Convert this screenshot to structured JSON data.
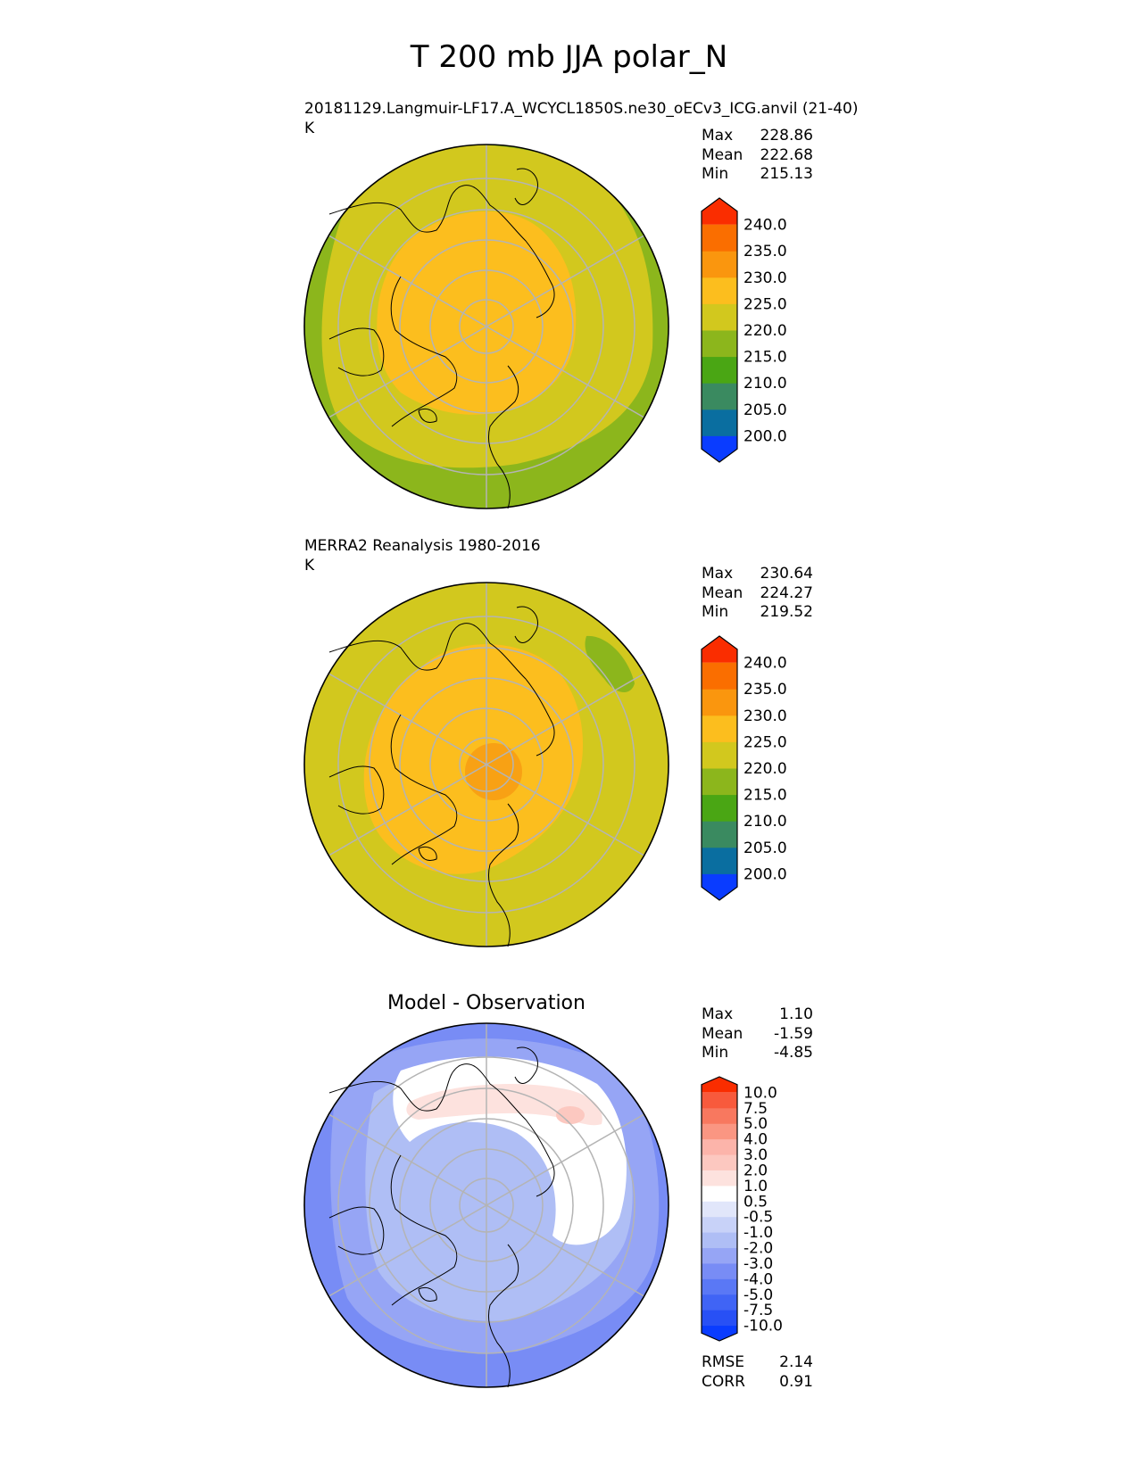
{
  "title": "T 200 mb JJA polar_N",
  "panels": [
    {
      "id": "test",
      "title": "20181129.Langmuir-LF17.A_WCYCL1850S.ne30_oECv3_ICG.anvil (21-40)",
      "units": "K",
      "stats": [
        {
          "label": "Max",
          "value": "228.86"
        },
        {
          "label": "Mean",
          "value": "222.68"
        },
        {
          "label": "Min",
          "value": "215.13"
        }
      ]
    },
    {
      "id": "ref",
      "title": "MERRA2 Reanalysis 1980-2016",
      "units": "K",
      "stats": [
        {
          "label": "Max",
          "value": "230.64"
        },
        {
          "label": "Mean",
          "value": "224.27"
        },
        {
          "label": "Min",
          "value": "219.52"
        }
      ]
    },
    {
      "id": "diff",
      "title": "Model - Observation",
      "units": "",
      "stats": [
        {
          "label": "Max",
          "value": "1.10"
        },
        {
          "label": "Mean",
          "value": "-1.59"
        },
        {
          "label": "Min",
          "value": "-4.85"
        }
      ],
      "metrics": [
        {
          "label": "RMSE",
          "value": "2.14"
        },
        {
          "label": "CORR",
          "value": "0.91"
        }
      ]
    }
  ],
  "chart_data": [
    {
      "type": "heatmap",
      "projection": "north-polar-stereographic",
      "colorbar": {
        "levels": [
          "200.0",
          "205.0",
          "210.0",
          "215.0",
          "220.0",
          "225.0",
          "230.0",
          "235.0",
          "240.0"
        ],
        "colors": [
          "#0a3cff",
          "#0a6ea0",
          "#3a8a60",
          "#4aa614",
          "#8cb61c",
          "#d2c81e",
          "#fcbe1e",
          "#fa960e",
          "#fa6e00",
          "#fa2d00"
        ],
        "extend": "both"
      }
    },
    {
      "type": "heatmap",
      "projection": "north-polar-stereographic",
      "colorbar": {
        "levels": [
          "200.0",
          "205.0",
          "210.0",
          "215.0",
          "220.0",
          "225.0",
          "230.0",
          "235.0",
          "240.0"
        ],
        "colors": [
          "#0a3cff",
          "#0a6ea0",
          "#3a8a60",
          "#4aa614",
          "#8cb61c",
          "#d2c81e",
          "#fcbe1e",
          "#fa960e",
          "#fa6e00",
          "#fa2d00"
        ],
        "extend": "both"
      }
    },
    {
      "type": "heatmap",
      "projection": "north-polar-stereographic",
      "colorbar": {
        "levels": [
          "-10.0",
          "-7.5",
          "-5.0",
          "-4.0",
          "-3.0",
          "-2.0",
          "-1.0",
          "-0.5",
          "0.5",
          "1.0",
          "2.0",
          "3.0",
          "4.0",
          "5.0",
          "7.5",
          "10.0"
        ],
        "colors": [
          "#0a3cff",
          "#2850f5",
          "#4064f5",
          "#5a78f5",
          "#788cf5",
          "#96a5f5",
          "#afbef5",
          "#c8d2f8",
          "#e1e6fa",
          "#ffffff",
          "#fde2de",
          "#fcc8c0",
          "#fcb4aa",
          "#fa9682",
          "#f8785f",
          "#f85a3c",
          "#fa2d00"
        ],
        "extend": "both"
      }
    }
  ]
}
